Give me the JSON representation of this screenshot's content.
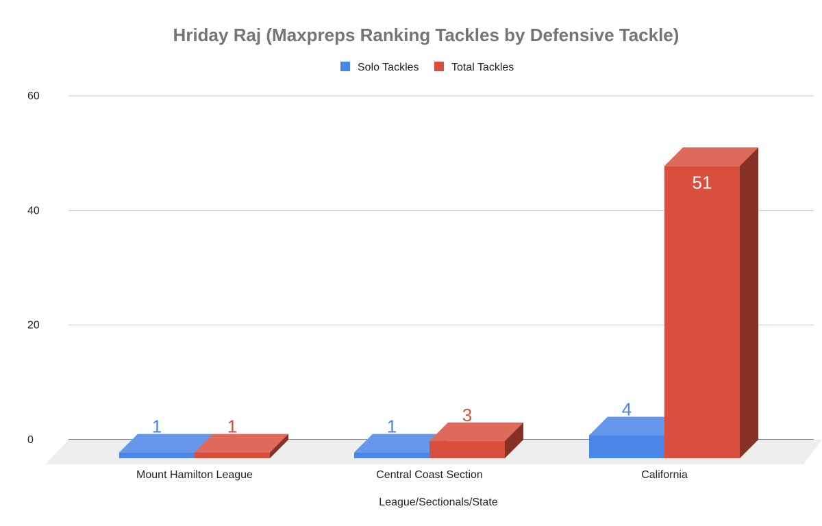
{
  "chart_data": {
    "type": "bar",
    "title": "Hriday Raj (Maxpreps Ranking  Tackles by Defensive Tackle)",
    "xlabel": "League/Sectionals/State",
    "ylabel": "",
    "ylim": [
      0,
      60
    ],
    "yticks": [
      "0",
      "20",
      "40",
      "60"
    ],
    "grid": true,
    "legend_position": "top",
    "categories": [
      "Mount Hamilton League",
      "Central Coast Section",
      "California"
    ],
    "series": [
      {
        "name": "Solo Tackles",
        "color": "#4a86e8",
        "values": [
          1,
          1,
          4
        ],
        "labels": [
          "1",
          "1",
          "4"
        ]
      },
      {
        "name": "Total Tackles",
        "color": "#d94f3d",
        "values": [
          1,
          3,
          51
        ],
        "labels": [
          "1",
          "3",
          "51"
        ]
      }
    ]
  }
}
